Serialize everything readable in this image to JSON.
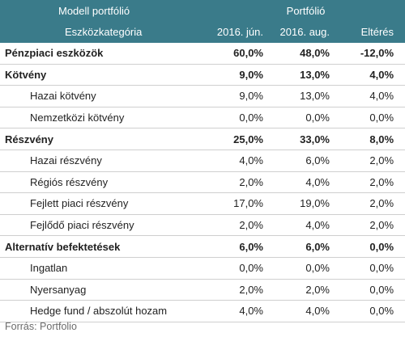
{
  "header": {
    "model_label": "Modell portfólió",
    "portfolio_label": "Portfólió",
    "category_label": "Eszközkategória",
    "col_jun": "2016. jún.",
    "col_aug": "2016. aug.",
    "col_diff": "Eltérés"
  },
  "rows": [
    {
      "label": "Pénzpiaci eszközök",
      "jun": "60,0%",
      "aug": "48,0%",
      "diff": "-12,0%"
    },
    {
      "label": "Kötvény",
      "jun": "9,0%",
      "aug": "13,0%",
      "diff": "4,0%"
    },
    {
      "label": "Hazai kötvény",
      "jun": "9,0%",
      "aug": "13,0%",
      "diff": "4,0%"
    },
    {
      "label": "Nemzetközi kötvény",
      "jun": "0,0%",
      "aug": "0,0%",
      "diff": "0,0%"
    },
    {
      "label": "Részvény",
      "jun": "25,0%",
      "aug": "33,0%",
      "diff": "8,0%"
    },
    {
      "label": "Hazai részvény",
      "jun": "4,0%",
      "aug": "6,0%",
      "diff": "2,0%"
    },
    {
      "label": "Régiós részvény",
      "jun": "2,0%",
      "aug": "4,0%",
      "diff": "2,0%"
    },
    {
      "label": "Fejlett piaci részvény",
      "jun": "17,0%",
      "aug": "19,0%",
      "diff": "2,0%"
    },
    {
      "label": "Fejlődő piaci részvény",
      "jun": "2,0%",
      "aug": "4,0%",
      "diff": "2,0%"
    },
    {
      "label": "Alternatív befektetések",
      "jun": "6,0%",
      "aug": "6,0%",
      "diff": "0,0%"
    },
    {
      "label": "Ingatlan",
      "jun": "0,0%",
      "aug": "0,0%",
      "diff": "0,0%"
    },
    {
      "label": "Nyersanyag",
      "jun": "2,0%",
      "aug": "2,0%",
      "diff": "0,0%"
    },
    {
      "label": "Hedge fund / abszolút hozam",
      "jun": "4,0%",
      "aug": "4,0%",
      "diff": "0,0%"
    }
  ],
  "source": "Forrás: Portfolio",
  "colors": {
    "header_bg": "#3a7b8a",
    "header_text": "#ffffff"
  }
}
